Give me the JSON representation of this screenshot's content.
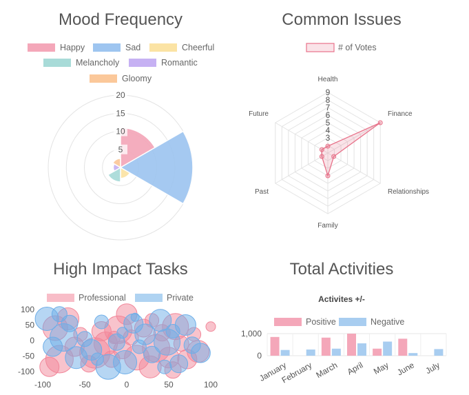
{
  "chart_data": [
    {
      "type": "polarArea",
      "title": "Mood Frequency",
      "categories": [
        "Happy",
        "Sad",
        "Cheerful",
        "Melancholy",
        "Romantic",
        "Gloomy"
      ],
      "values": [
        11,
        20,
        3,
        4,
        2,
        2.5
      ],
      "rlim": [
        0,
        20
      ],
      "r_ticks": [
        5,
        10,
        15,
        20
      ],
      "colors": [
        "#f4a7b9",
        "#9ec5f0",
        "#fbe3a4",
        "#a8dbd8",
        "#c6b1f3",
        "#fbc89a"
      ],
      "legend": "top"
    },
    {
      "type": "radar",
      "title": "Common Issues",
      "axes": [
        "Health",
        "Finance",
        "Relationships",
        "Family",
        "Past",
        "Future"
      ],
      "series": [
        {
          "name": "# of Votes",
          "values": [
            1,
            9,
            1,
            4,
            0,
            1
          ]
        }
      ],
      "rlim": [
        1,
        9
      ],
      "r_ticks": [
        3,
        4,
        5,
        6,
        7,
        8,
        9
      ],
      "color": "#e8728a",
      "legend": "top"
    },
    {
      "type": "bubble",
      "title": "High Impact Tasks",
      "xlim": [
        -100,
        100
      ],
      "ylim": [
        -100,
        100
      ],
      "x_ticks": [
        -100,
        -50,
        0,
        50,
        100
      ],
      "y_ticks": [
        100,
        50,
        0,
        -50,
        -100
      ],
      "legend": "top",
      "series": [
        {
          "name": "Professional",
          "color": "#f2879a",
          "points": [
            {
              "x": -85,
              "y": 40,
              "r": 18
            },
            {
              "x": -80,
              "y": -60,
              "r": 20
            },
            {
              "x": -70,
              "y": 70,
              "r": 16
            },
            {
              "x": -62,
              "y": -20,
              "r": 14
            },
            {
              "x": -55,
              "y": 20,
              "r": 10
            },
            {
              "x": -45,
              "y": -75,
              "r": 12
            },
            {
              "x": -38,
              "y": -40,
              "r": 22
            },
            {
              "x": -30,
              "y": 30,
              "r": 14
            },
            {
              "x": -25,
              "y": -10,
              "r": 17
            },
            {
              "x": -18,
              "y": -60,
              "r": 12
            },
            {
              "x": -10,
              "y": 35,
              "r": 20
            },
            {
              "x": -5,
              "y": -30,
              "r": 13
            },
            {
              "x": 0,
              "y": 85,
              "r": 15
            },
            {
              "x": 5,
              "y": 10,
              "r": 11
            },
            {
              "x": 12,
              "y": -55,
              "r": 18
            },
            {
              "x": 20,
              "y": 40,
              "r": 13
            },
            {
              "x": 28,
              "y": -85,
              "r": 16
            },
            {
              "x": 35,
              "y": -25,
              "r": 20
            },
            {
              "x": 42,
              "y": 25,
              "r": 12
            },
            {
              "x": 50,
              "y": -55,
              "r": 15
            },
            {
              "x": 58,
              "y": 45,
              "r": 19
            },
            {
              "x": 65,
              "y": -10,
              "r": 11
            },
            {
              "x": 72,
              "y": -60,
              "r": 14
            },
            {
              "x": 80,
              "y": 20,
              "r": 10
            },
            {
              "x": 85,
              "y": -35,
              "r": 16
            },
            {
              "x": 100,
              "y": 45,
              "r": 7
            },
            {
              "x": -92,
              "y": -85,
              "r": 14
            },
            {
              "x": 55,
              "y": -95,
              "r": 12
            },
            {
              "x": -15,
              "y": 10,
              "r": 9
            },
            {
              "x": 30,
              "y": 65,
              "r": 10
            }
          ]
        },
        {
          "name": "Private",
          "color": "#6eaee8",
          "points": [
            {
              "x": -95,
              "y": 70,
              "r": 17
            },
            {
              "x": -88,
              "y": -20,
              "r": 14
            },
            {
              "x": -75,
              "y": 10,
              "r": 20
            },
            {
              "x": -68,
              "y": 55,
              "r": 12
            },
            {
              "x": -60,
              "y": -55,
              "r": 16
            },
            {
              "x": -50,
              "y": 5,
              "r": 11
            },
            {
              "x": -42,
              "y": -30,
              "r": 15
            },
            {
              "x": -30,
              "y": 60,
              "r": 10
            },
            {
              "x": -22,
              "y": -85,
              "r": 18
            },
            {
              "x": -12,
              "y": -5,
              "r": 12
            },
            {
              "x": -2,
              "y": -70,
              "r": 17
            },
            {
              "x": 8,
              "y": 55,
              "r": 14
            },
            {
              "x": 15,
              "y": -20,
              "r": 10
            },
            {
              "x": 22,
              "y": 20,
              "r": 15
            },
            {
              "x": 30,
              "y": -45,
              "r": 12
            },
            {
              "x": 40,
              "y": 65,
              "r": 16
            },
            {
              "x": 48,
              "y": -5,
              "r": 19
            },
            {
              "x": 55,
              "y": 30,
              "r": 10
            },
            {
              "x": 62,
              "y": -75,
              "r": 13
            },
            {
              "x": 70,
              "y": 50,
              "r": 15
            },
            {
              "x": 78,
              "y": -15,
              "r": 12
            },
            {
              "x": 88,
              "y": -40,
              "r": 14
            },
            {
              "x": -80,
              "y": 85,
              "r": 11
            },
            {
              "x": 10,
              "y": 75,
              "r": 6
            },
            {
              "x": -35,
              "y": -60,
              "r": 9
            },
            {
              "x": 45,
              "y": -85,
              "r": 10
            },
            {
              "x": -5,
              "y": 25,
              "r": 8
            }
          ]
        }
      ]
    },
    {
      "type": "bar",
      "title": "Total Activities",
      "subtitle": "Activites +/-",
      "categories": [
        "January",
        "February",
        "March",
        "April",
        "May",
        "June",
        "July"
      ],
      "series": [
        {
          "name": "Positive",
          "values": [
            850,
            0,
            820,
            1000,
            320,
            770,
            0
          ],
          "color": "#f4a7b9"
        },
        {
          "name": "Negative",
          "values": [
            260,
            280,
            320,
            560,
            640,
            120,
            300
          ],
          "color": "#a8cdf0"
        }
      ],
      "ylim": [
        0,
        1000
      ],
      "y_ticks": [
        1000,
        0
      ],
      "y_tick_labels": [
        "1,000",
        "0"
      ],
      "legend": "top"
    }
  ]
}
